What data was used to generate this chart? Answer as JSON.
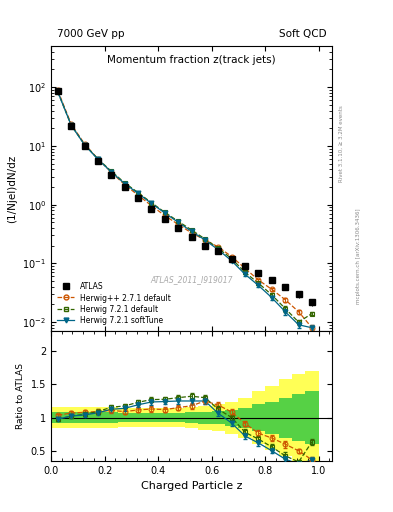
{
  "title_main": "Momentum fraction z(track jets)",
  "title_top_left": "7000 GeV pp",
  "title_top_right": "Soft QCD",
  "ylabel_main": "(1/Njel)dN/dz",
  "ylabel_ratio": "Ratio to ATLAS",
  "xlabel": "Charged Particle z",
  "right_label_top": "Rivet 3.1.10, ≥ 3.2M events",
  "right_label_bottom": "mcplots.cern.ch [arXiv:1306.3436]",
  "watermark": "ATLAS_2011_I919017",
  "ylim_main": [
    0.007,
    500
  ],
  "ylim_ratio": [
    0.35,
    2.3
  ],
  "xlim": [
    0.0,
    1.05
  ],
  "atlas_x": [
    0.025,
    0.075,
    0.125,
    0.175,
    0.225,
    0.275,
    0.325,
    0.375,
    0.425,
    0.475,
    0.525,
    0.575,
    0.625,
    0.675,
    0.725,
    0.775,
    0.825,
    0.875,
    0.925,
    0.975
  ],
  "atlas_y": [
    85.0,
    22.0,
    10.0,
    5.5,
    3.2,
    2.0,
    1.3,
    0.85,
    0.58,
    0.4,
    0.28,
    0.2,
    0.16,
    0.12,
    0.09,
    0.068,
    0.052,
    0.04,
    0.03,
    0.022
  ],
  "atlas_yerr_lo": [
    5.0,
    1.5,
    0.7,
    0.4,
    0.25,
    0.15,
    0.1,
    0.07,
    0.05,
    0.035,
    0.025,
    0.018,
    0.015,
    0.012,
    0.01,
    0.008,
    0.006,
    0.005,
    0.004,
    0.003
  ],
  "atlas_yerr_hi": [
    5.0,
    1.5,
    0.7,
    0.4,
    0.25,
    0.15,
    0.1,
    0.07,
    0.05,
    0.035,
    0.025,
    0.018,
    0.015,
    0.012,
    0.01,
    0.008,
    0.006,
    0.005,
    0.004,
    0.003
  ],
  "atlas_band_lo": [
    0.92,
    0.92,
    0.92,
    0.92,
    0.92,
    0.93,
    0.93,
    0.93,
    0.93,
    0.93,
    0.92,
    0.91,
    0.9,
    0.88,
    0.85,
    0.8,
    0.76,
    0.7,
    0.65,
    0.6
  ],
  "atlas_band_hi": [
    1.08,
    1.08,
    1.08,
    1.08,
    1.08,
    1.07,
    1.07,
    1.07,
    1.07,
    1.07,
    1.08,
    1.09,
    1.1,
    1.12,
    1.15,
    1.2,
    1.24,
    1.3,
    1.35,
    1.4
  ],
  "atlas_band2_lo": [
    0.84,
    0.84,
    0.84,
    0.84,
    0.84,
    0.86,
    0.86,
    0.86,
    0.86,
    0.86,
    0.84,
    0.82,
    0.8,
    0.76,
    0.7,
    0.6,
    0.52,
    0.42,
    0.35,
    0.3
  ],
  "atlas_band2_hi": [
    1.16,
    1.16,
    1.16,
    1.16,
    1.16,
    1.14,
    1.14,
    1.14,
    1.14,
    1.14,
    1.16,
    1.18,
    1.2,
    1.24,
    1.3,
    1.4,
    1.48,
    1.58,
    1.65,
    1.7
  ],
  "hwpp_y": [
    88.0,
    23.5,
    10.8,
    6.0,
    3.55,
    2.18,
    1.45,
    0.96,
    0.65,
    0.46,
    0.33,
    0.25,
    0.19,
    0.13,
    0.082,
    0.052,
    0.036,
    0.024,
    0.015,
    0.008
  ],
  "hwpp_yerr": [
    2.0,
    0.6,
    0.3,
    0.18,
    0.12,
    0.07,
    0.05,
    0.033,
    0.022,
    0.016,
    0.012,
    0.009,
    0.007,
    0.005,
    0.004,
    0.003,
    0.002,
    0.002,
    0.001,
    0.001
  ],
  "hw721_y": [
    83.0,
    22.5,
    10.5,
    6.0,
    3.7,
    2.35,
    1.6,
    1.08,
    0.74,
    0.52,
    0.37,
    0.26,
    0.18,
    0.12,
    0.07,
    0.046,
    0.029,
    0.017,
    0.01,
    0.014
  ],
  "hw721_yerr": [
    2.0,
    0.6,
    0.3,
    0.18,
    0.12,
    0.07,
    0.05,
    0.033,
    0.022,
    0.016,
    0.012,
    0.009,
    0.007,
    0.005,
    0.004,
    0.003,
    0.002,
    0.002,
    0.001,
    0.001
  ],
  "hw721st_y": [
    83.0,
    22.5,
    10.4,
    5.9,
    3.6,
    2.28,
    1.55,
    1.05,
    0.72,
    0.5,
    0.35,
    0.25,
    0.17,
    0.11,
    0.065,
    0.042,
    0.026,
    0.015,
    0.009,
    0.008
  ],
  "hw721st_yerr": [
    2.0,
    0.6,
    0.3,
    0.18,
    0.12,
    0.07,
    0.05,
    0.033,
    0.022,
    0.016,
    0.012,
    0.009,
    0.007,
    0.005,
    0.004,
    0.003,
    0.002,
    0.002,
    0.001,
    0.001
  ],
  "color_atlas": "#000000",
  "color_hwpp": "#cc5500",
  "color_hw721": "#336600",
  "color_hw721st": "#006688"
}
